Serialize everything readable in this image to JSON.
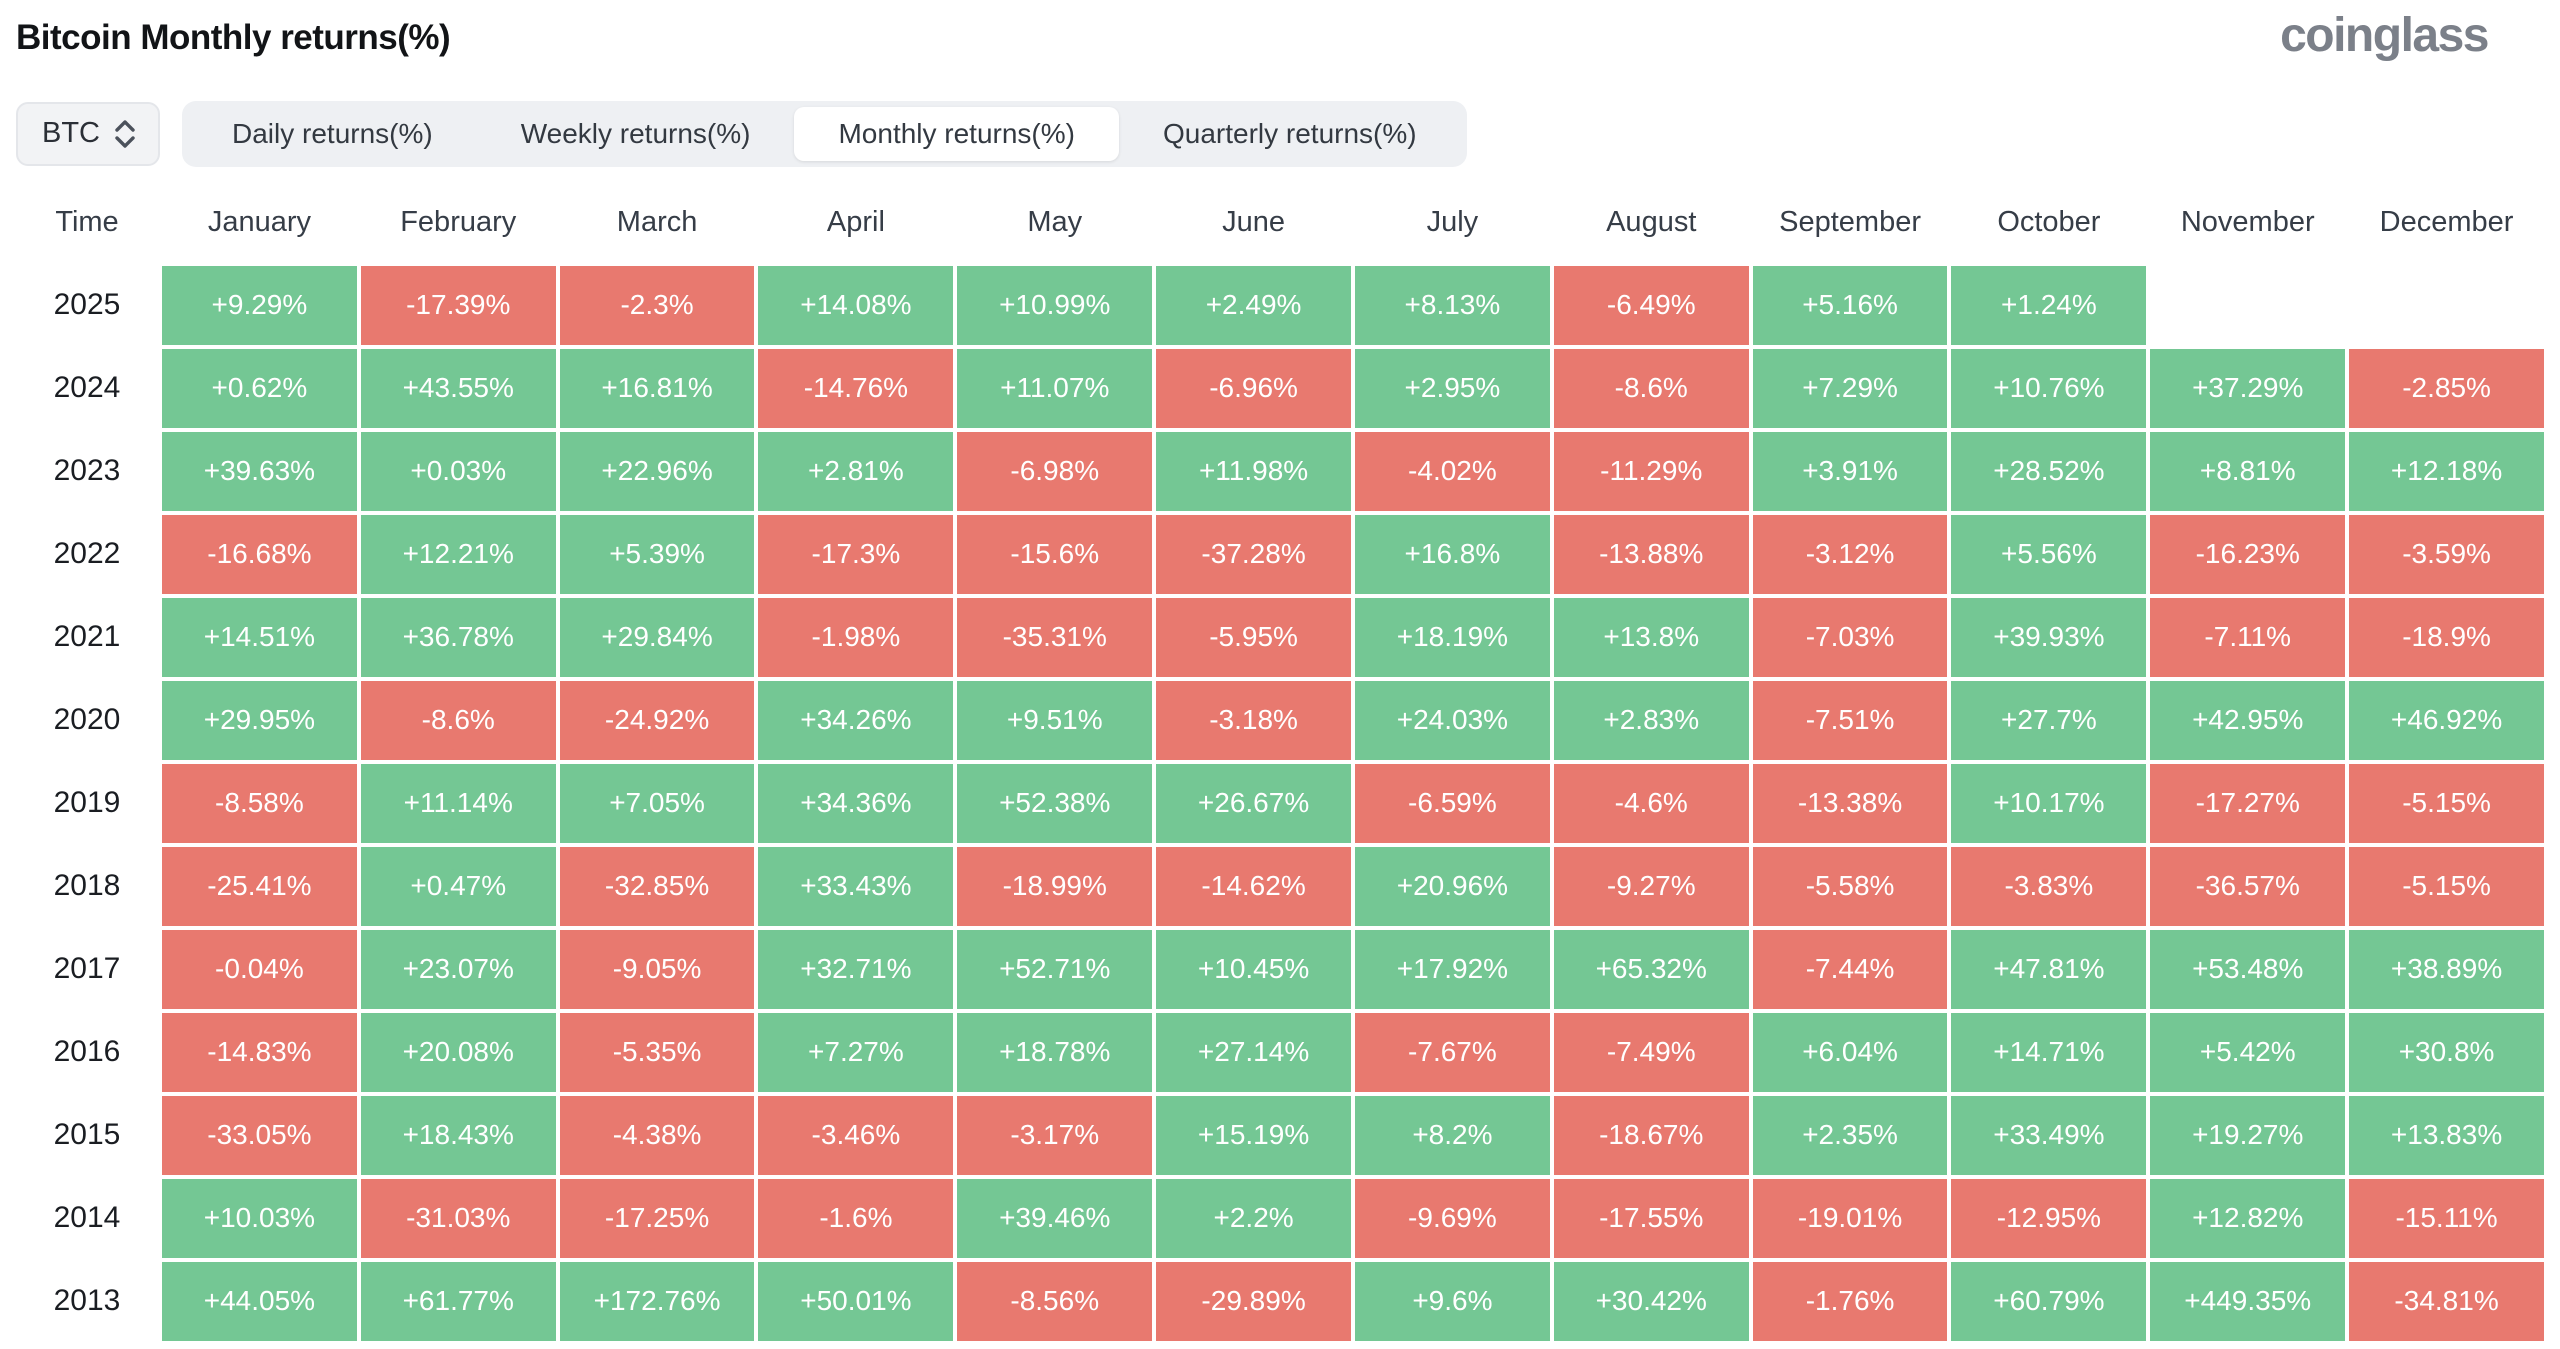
{
  "header": {
    "title": "Bitcoin Monthly returns(%)",
    "logo_text": "coinglass"
  },
  "controls": {
    "symbol_select": {
      "value": "BTC"
    },
    "tabs": [
      {
        "label": "Daily returns(%)",
        "selected": false
      },
      {
        "label": "Weekly returns(%)",
        "selected": false
      },
      {
        "label": "Monthly returns(%)",
        "selected": true
      },
      {
        "label": "Quarterly returns(%)",
        "selected": false
      }
    ]
  },
  "colors": {
    "positive": "#74c794",
    "negative": "#e8796f",
    "title_text": "#121417",
    "logo_gray": "#7b8089",
    "tab_bar_bg": "#eef0f3"
  },
  "chart_data": {
    "type": "heatmap",
    "title": "Bitcoin Monthly returns(%)",
    "legend_rule": "cells starting with + are green, cells starting with - are red, empty cells are blank",
    "columns": [
      "Time",
      "January",
      "February",
      "March",
      "April",
      "May",
      "June",
      "July",
      "August",
      "September",
      "October",
      "November",
      "December"
    ],
    "rows": [
      {
        "year": "2025",
        "values": [
          "+9.29%",
          "-17.39%",
          "-2.3%",
          "+14.08%",
          "+10.99%",
          "+2.49%",
          "+8.13%",
          "-6.49%",
          "+5.16%",
          "+1.24%",
          "",
          ""
        ]
      },
      {
        "year": "2024",
        "values": [
          "+0.62%",
          "+43.55%",
          "+16.81%",
          "-14.76%",
          "+11.07%",
          "-6.96%",
          "+2.95%",
          "-8.6%",
          "+7.29%",
          "+10.76%",
          "+37.29%",
          "-2.85%"
        ]
      },
      {
        "year": "2023",
        "values": [
          "+39.63%",
          "+0.03%",
          "+22.96%",
          "+2.81%",
          "-6.98%",
          "+11.98%",
          "-4.02%",
          "-11.29%",
          "+3.91%",
          "+28.52%",
          "+8.81%",
          "+12.18%"
        ]
      },
      {
        "year": "2022",
        "values": [
          "-16.68%",
          "+12.21%",
          "+5.39%",
          "-17.3%",
          "-15.6%",
          "-37.28%",
          "+16.8%",
          "-13.88%",
          "-3.12%",
          "+5.56%",
          "-16.23%",
          "-3.59%"
        ]
      },
      {
        "year": "2021",
        "values": [
          "+14.51%",
          "+36.78%",
          "+29.84%",
          "-1.98%",
          "-35.31%",
          "-5.95%",
          "+18.19%",
          "+13.8%",
          "-7.03%",
          "+39.93%",
          "-7.11%",
          "-18.9%"
        ]
      },
      {
        "year": "2020",
        "values": [
          "+29.95%",
          "-8.6%",
          "-24.92%",
          "+34.26%",
          "+9.51%",
          "-3.18%",
          "+24.03%",
          "+2.83%",
          "-7.51%",
          "+27.7%",
          "+42.95%",
          "+46.92%"
        ]
      },
      {
        "year": "2019",
        "values": [
          "-8.58%",
          "+11.14%",
          "+7.05%",
          "+34.36%",
          "+52.38%",
          "+26.67%",
          "-6.59%",
          "-4.6%",
          "-13.38%",
          "+10.17%",
          "-17.27%",
          "-5.15%"
        ]
      },
      {
        "year": "2018",
        "values": [
          "-25.41%",
          "+0.47%",
          "-32.85%",
          "+33.43%",
          "-18.99%",
          "-14.62%",
          "+20.96%",
          "-9.27%",
          "-5.58%",
          "-3.83%",
          "-36.57%",
          "-5.15%"
        ]
      },
      {
        "year": "2017",
        "values": [
          "-0.04%",
          "+23.07%",
          "-9.05%",
          "+32.71%",
          "+52.71%",
          "+10.45%",
          "+17.92%",
          "+65.32%",
          "-7.44%",
          "+47.81%",
          "+53.48%",
          "+38.89%"
        ]
      },
      {
        "year": "2016",
        "values": [
          "-14.83%",
          "+20.08%",
          "-5.35%",
          "+7.27%",
          "+18.78%",
          "+27.14%",
          "-7.67%",
          "-7.49%",
          "+6.04%",
          "+14.71%",
          "+5.42%",
          "+30.8%"
        ]
      },
      {
        "year": "2015",
        "values": [
          "-33.05%",
          "+18.43%",
          "-4.38%",
          "-3.46%",
          "-3.17%",
          "+15.19%",
          "+8.2%",
          "-18.67%",
          "+2.35%",
          "+33.49%",
          "+19.27%",
          "+13.83%"
        ]
      },
      {
        "year": "2014",
        "values": [
          "+10.03%",
          "-31.03%",
          "-17.25%",
          "-1.6%",
          "+39.46%",
          "+2.2%",
          "-9.69%",
          "-17.55%",
          "-19.01%",
          "-12.95%",
          "+12.82%",
          "-15.11%"
        ]
      },
      {
        "year": "2013",
        "values": [
          "+44.05%",
          "+61.77%",
          "+172.76%",
          "+50.01%",
          "-8.56%",
          "-29.89%",
          "+9.6%",
          "+30.42%",
          "-1.76%",
          "+60.79%",
          "+449.35%",
          "-34.81%"
        ]
      }
    ]
  }
}
